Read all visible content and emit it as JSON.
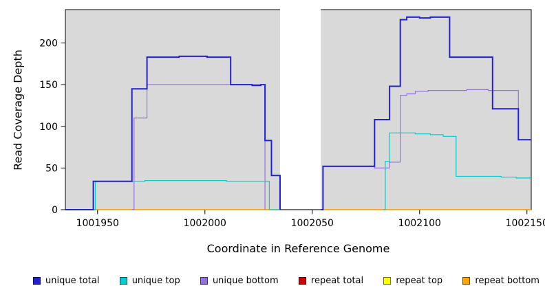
{
  "chart_data": {
    "type": "line",
    "step": true,
    "title": "",
    "xlabel": "Coordinate in Reference Genome",
    "ylabel": "Read Coverage Depth",
    "xlim": [
      1001935,
      1002152
    ],
    "ylim": [
      0,
      240
    ],
    "x_ticks": [
      1001950,
      1002000,
      1002050,
      1002100,
      1002150
    ],
    "y_ticks": [
      0,
      50,
      100,
      150,
      200
    ],
    "grid": false,
    "panel_background": "#d9d9d9",
    "outer_background": "#ffffff",
    "masked_region": {
      "x0": 1002035,
      "x1": 1002054,
      "color": "#ffffff"
    },
    "legend_position": "bottom",
    "draw_order": [
      3,
      4,
      5,
      2,
      1,
      0
    ],
    "series": [
      {
        "id": "unique-total",
        "name": "unique total",
        "color": "#2222cc",
        "lwd": 2,
        "segments": [
          [
            [
              1001935,
              0
            ],
            [
              1001948,
              34
            ],
            [
              1001966,
              145
            ],
            [
              1001973,
              183
            ],
            [
              1001988,
              184
            ],
            [
              1002001,
              183
            ],
            [
              1002012,
              150
            ],
            [
              1002022,
              149
            ],
            [
              1002026,
              150
            ],
            [
              1002028,
              83
            ],
            [
              1002031,
              41
            ],
            [
              1002035,
              0
            ]
          ],
          [
            [
              1002054,
              0
            ],
            [
              1002055,
              52
            ],
            [
              1002079,
              108
            ],
            [
              1002086,
              148
            ],
            [
              1002091,
              228
            ],
            [
              1002094,
              231
            ],
            [
              1002100,
              230
            ],
            [
              1002105,
              231
            ],
            [
              1002114,
              183
            ],
            [
              1002134,
              121
            ],
            [
              1002146,
              84
            ],
            [
              1002152,
              84
            ]
          ]
        ]
      },
      {
        "id": "unique-top",
        "name": "unique top",
        "color": "#00cdcd",
        "lwd": 1.2,
        "segments": [
          [
            [
              1001948,
              0
            ],
            [
              1001949,
              34
            ],
            [
              1001972,
              35
            ],
            [
              1002010,
              34
            ],
            [
              1002030,
              0
            ],
            [
              1002035,
              0
            ]
          ],
          [
            [
              1002083,
              0
            ],
            [
              1002084,
              58
            ],
            [
              1002086,
              92
            ],
            [
              1002098,
              91
            ],
            [
              1002105,
              90
            ],
            [
              1002111,
              88
            ],
            [
              1002117,
              40
            ],
            [
              1002138,
              39
            ],
            [
              1002145,
              38
            ],
            [
              1002152,
              38
            ]
          ]
        ]
      },
      {
        "id": "unique-bottom",
        "name": "unique bottom",
        "color": "#9370db",
        "lwd": 1.2,
        "segments": [
          [
            [
              1001966,
              0
            ],
            [
              1001967,
              110
            ],
            [
              1001973,
              150
            ],
            [
              1002027,
              150
            ],
            [
              1002028,
              0
            ]
          ],
          [
            [
              1002054,
              0
            ],
            [
              1002055,
              52
            ],
            [
              1002079,
              50
            ],
            [
              1002086,
              57
            ],
            [
              1002091,
              137
            ],
            [
              1002094,
              139
            ],
            [
              1002098,
              142
            ],
            [
              1002104,
              143
            ],
            [
              1002122,
              144
            ],
            [
              1002132,
              143
            ],
            [
              1002146,
              84
            ],
            [
              1002152,
              84
            ]
          ]
        ]
      },
      {
        "id": "repeat-total",
        "name": "repeat total",
        "color": "#cd0000",
        "lwd": 1.2,
        "segments": [
          [
            [
              1001935,
              0
            ],
            [
              1002035,
              0
            ]
          ],
          [
            [
              1002054,
              0
            ],
            [
              1002152,
              0
            ]
          ]
        ]
      },
      {
        "id": "repeat-top",
        "name": "repeat top",
        "color": "#ffff00",
        "lwd": 1.2,
        "segments": [
          [
            [
              1001935,
              0
            ],
            [
              1002035,
              0
            ]
          ],
          [
            [
              1002054,
              0
            ],
            [
              1002152,
              0
            ]
          ]
        ]
      },
      {
        "id": "repeat-bottom",
        "name": "repeat bottom",
        "color": "#ffa500",
        "lwd": 1.4,
        "segments": [
          [
            [
              1001935,
              0
            ],
            [
              1002035,
              0
            ]
          ],
          [
            [
              1002054,
              0
            ],
            [
              1002152,
              0
            ]
          ]
        ]
      }
    ],
    "legend": [
      {
        "label": "unique total",
        "color": "#2222cc"
      },
      {
        "label": "unique top",
        "color": "#00cdcd"
      },
      {
        "label": "unique bottom",
        "color": "#9370db"
      },
      {
        "label": "repeat total",
        "color": "#cd0000"
      },
      {
        "label": "repeat top",
        "color": "#ffff00"
      },
      {
        "label": "repeat bottom",
        "color": "#ffa500"
      }
    ]
  }
}
